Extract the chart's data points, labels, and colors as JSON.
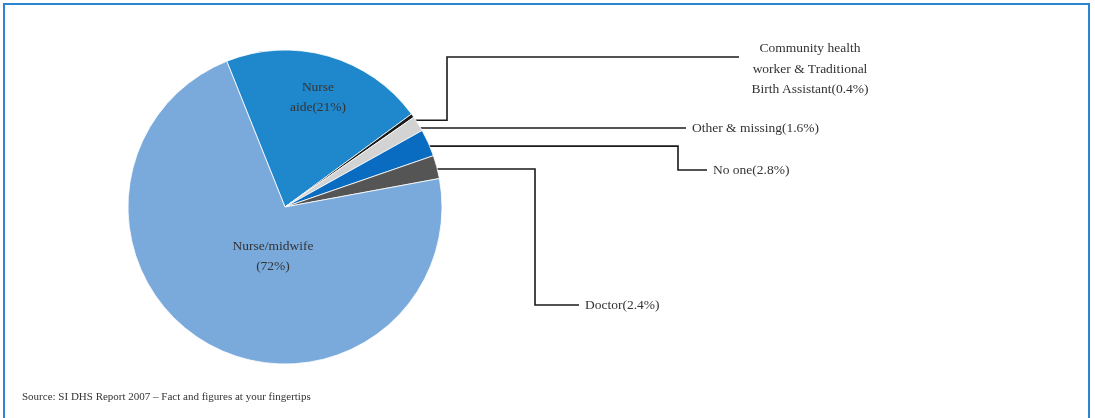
{
  "chart_data": {
    "type": "pie",
    "categories": [
      "Nurse aide",
      "Community health worker & Traditional Birth Assistant",
      "Other & missing",
      "No one",
      "Doctor",
      "Nurse/midwife"
    ],
    "values": [
      21,
      0.4,
      1.6,
      2.8,
      2.4,
      72
    ],
    "value_labels": [
      "(21%)",
      "(0.4%)",
      "(1.6%)",
      "(2.8%)",
      "(2.4%)",
      "(72%)"
    ],
    "colors": [
      "#1f88cc",
      "#1a1a1a",
      "#d3d3d3",
      "#0a6cc0",
      "#555555",
      "#7aaadb"
    ],
    "annotations": [
      "Source: SI DHS Report 2007 – Fact and figures at your fingertips"
    ]
  }
}
